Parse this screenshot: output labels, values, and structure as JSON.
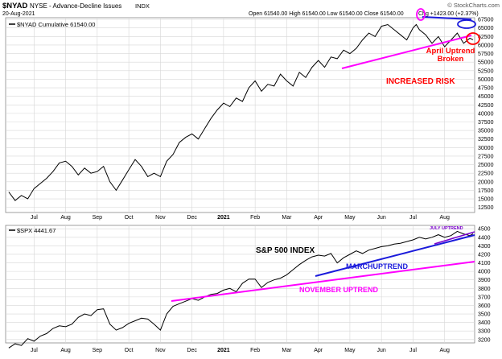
{
  "header": {
    "symbol": "$NYAD",
    "description": "NYSE - Advance-Decline Issues",
    "exchange": "INDX",
    "date": "20-Aug-2021",
    "ohlc": "Open 61540.00   High 61540.00   Low 61540.00   Close 61540.00",
    "change": "Chg +1423.00 (+2.37%)",
    "watermark": "© StockCharts.com"
  },
  "colors": {
    "price_line": "#000000",
    "grid": "#d7d7d7",
    "annotation_magenta": "#ff00ff",
    "annotation_blue": "#1a1adb",
    "annotation_red": "#ff0000",
    "panel_border": "#888888"
  },
  "annotations": {
    "april_uptrend": "April Uptrend",
    "broken": "Broken",
    "increased_risk": "INCREASED RISK",
    "sp500_index": "S&P 500 INDEX",
    "march_uptrend": "MARCHUPTREND",
    "november_uptrend": "NOVEMBER UPTREND",
    "july_uptrend": "JULY UPTREND"
  },
  "chart_data": [
    {
      "type": "line",
      "legend": "$NYAD Cumulative 61540.00",
      "xlabel": "",
      "ylabel": "",
      "ylim": [
        11000,
        68000
      ],
      "y_ticks": [
        12500,
        15000,
        17500,
        20000,
        22500,
        25000,
        27500,
        30000,
        32500,
        35000,
        37500,
        40000,
        42500,
        45000,
        47500,
        50000,
        52500,
        55000,
        57500,
        60000,
        62500,
        65000,
        67500
      ],
      "x_tick_labels": [
        "Jul",
        "Aug",
        "Sep",
        "Oct",
        "Nov",
        "Dec",
        "2021",
        "Feb",
        "Mar",
        "Apr",
        "May",
        "Jun",
        "Jul",
        "Aug"
      ],
      "x_tick_positions": [
        1,
        2,
        3,
        4,
        5,
        6,
        7,
        8,
        9,
        10,
        11,
        12,
        13,
        14
      ],
      "x_range": [
        0.1,
        14.95
      ],
      "series": [
        {
          "x": [
            0.2,
            0.4,
            0.6,
            0.8,
            1.0,
            1.2,
            1.4,
            1.6,
            1.8,
            2.0,
            2.2,
            2.4,
            2.6,
            2.8,
            3.0,
            3.2,
            3.4,
            3.6,
            3.8,
            4.0,
            4.2,
            4.4,
            4.6,
            4.8,
            5.0,
            5.2,
            5.4,
            5.6,
            5.8,
            6.0,
            6.2,
            6.4,
            6.6,
            6.8,
            7.0,
            7.2,
            7.4,
            7.6,
            7.8,
            8.0,
            8.2,
            8.4,
            8.6,
            8.8,
            9.0,
            9.2,
            9.4,
            9.6,
            9.8,
            10.0,
            10.2,
            10.4,
            10.6,
            10.8,
            11.0,
            11.2,
            11.4,
            11.6,
            11.8,
            12.0,
            12.2,
            12.4,
            12.6,
            12.8,
            13.0,
            13.1,
            13.2,
            13.4,
            13.6,
            13.8,
            14.0,
            14.2,
            14.4,
            14.6,
            14.8,
            14.9
          ],
          "y": [
            17000,
            14500,
            16000,
            15000,
            18000,
            19500,
            21000,
            23000,
            25500,
            26000,
            24500,
            22000,
            24000,
            22500,
            23000,
            24500,
            20000,
            17500,
            20500,
            23500,
            26500,
            24500,
            21500,
            22500,
            21500,
            26000,
            28000,
            31500,
            33000,
            34000,
            32500,
            35500,
            38500,
            41000,
            43000,
            42000,
            44500,
            43500,
            47500,
            49500,
            46500,
            48500,
            48000,
            51500,
            49500,
            48000,
            52000,
            50500,
            53500,
            55500,
            53500,
            56500,
            56000,
            58500,
            57500,
            59000,
            61500,
            63500,
            62500,
            65500,
            66000,
            64500,
            63000,
            61500,
            65000,
            66000,
            64500,
            63000,
            60500,
            62500,
            59500,
            61500,
            63500,
            60500,
            62000,
            61540
          ]
        }
      ]
    },
    {
      "type": "line",
      "legend": "$SPX 4441.67",
      "xlabel": "",
      "ylabel": "",
      "ylim": [
        3160,
        4540
      ],
      "y_ticks": [
        3200,
        3300,
        3400,
        3500,
        3600,
        3700,
        3800,
        3900,
        4000,
        4100,
        4200,
        4300,
        4400,
        4500
      ],
      "x_tick_labels": [
        "Jul",
        "Aug",
        "Sep",
        "Oct",
        "Nov",
        "Dec",
        "2021",
        "Feb",
        "Mar",
        "Apr",
        "May",
        "Jun",
        "Jul",
        "Aug"
      ],
      "x_tick_positions": [
        1,
        2,
        3,
        4,
        5,
        6,
        7,
        8,
        9,
        10,
        11,
        12,
        13,
        14
      ],
      "x_range": [
        0.1,
        14.95
      ],
      "series": [
        {
          "x": [
            0.2,
            0.4,
            0.6,
            0.8,
            1.0,
            1.2,
            1.4,
            1.6,
            1.8,
            2.0,
            2.2,
            2.4,
            2.6,
            2.8,
            3.0,
            3.2,
            3.4,
            3.6,
            3.8,
            4.0,
            4.2,
            4.4,
            4.6,
            4.8,
            5.0,
            5.2,
            5.4,
            5.6,
            5.8,
            6.0,
            6.2,
            6.4,
            6.6,
            6.8,
            7.0,
            7.2,
            7.4,
            7.6,
            7.8,
            8.0,
            8.2,
            8.4,
            8.6,
            8.8,
            9.0,
            9.2,
            9.4,
            9.6,
            9.8,
            10.0,
            10.2,
            10.4,
            10.6,
            10.8,
            11.0,
            11.2,
            11.4,
            11.6,
            11.8,
            12.0,
            12.2,
            12.4,
            12.6,
            12.8,
            13.0,
            13.2,
            13.4,
            13.6,
            13.8,
            14.0,
            14.2,
            14.4,
            14.6,
            14.8,
            14.9
          ],
          "y": [
            3100,
            3150,
            3130,
            3210,
            3180,
            3240,
            3270,
            3330,
            3360,
            3350,
            3380,
            3460,
            3500,
            3480,
            3550,
            3560,
            3380,
            3310,
            3340,
            3390,
            3420,
            3450,
            3440,
            3380,
            3310,
            3500,
            3590,
            3620,
            3650,
            3680,
            3660,
            3700,
            3730,
            3740,
            3780,
            3800,
            3760,
            3860,
            3910,
            3910,
            3810,
            3870,
            3900,
            3920,
            3960,
            4020,
            4080,
            4130,
            4170,
            4190,
            4180,
            4210,
            4100,
            4160,
            4200,
            4240,
            4210,
            4250,
            4270,
            4290,
            4300,
            4320,
            4330,
            4350,
            4370,
            4400,
            4380,
            4400,
            4430,
            4400,
            4420,
            4470,
            4440,
            4420,
            4441.67
          ]
        }
      ]
    }
  ]
}
